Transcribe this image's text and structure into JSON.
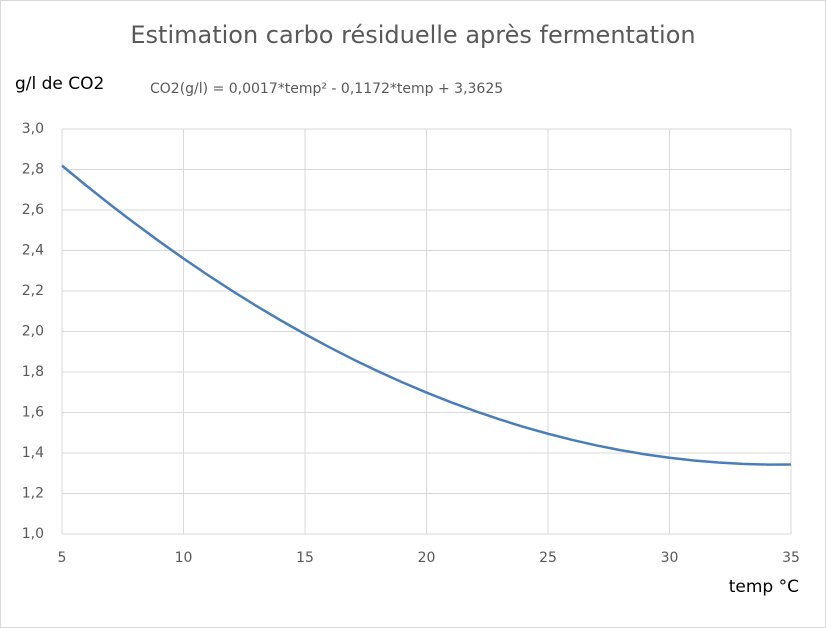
{
  "chart_data": {
    "type": "line",
    "title": "Estimation carbo résiduelle après fermentation",
    "y_label": "g/l de CO2",
    "x_label": "temp °C",
    "annotation": "CO2(g/l) = 0,0017*temp² - 0,1172*temp + 3,3625",
    "x": [
      5,
      6,
      7,
      8,
      9,
      10,
      11,
      12,
      13,
      14,
      15,
      16,
      17,
      18,
      19,
      20,
      21,
      22,
      23,
      24,
      25,
      26,
      27,
      28,
      29,
      30,
      31,
      32,
      33,
      34,
      35
    ],
    "series": [
      {
        "name": "CO2",
        "color": "#4a7ebb",
        "values": [
          2.819,
          2.7205,
          2.6254,
          2.5337,
          2.4454,
          2.3605,
          2.279,
          2.2009,
          2.1262,
          2.0549,
          1.987,
          1.9225,
          1.8614,
          1.8037,
          1.7494,
          1.6985,
          1.651,
          1.6069,
          1.5662,
          1.5289,
          1.495,
          1.4645,
          1.4374,
          1.4137,
          1.3934,
          1.3765,
          1.363,
          1.3529,
          1.3462,
          1.3429,
          1.343
        ]
      }
    ],
    "xlim": [
      5,
      35
    ],
    "xticks": [
      5,
      10,
      15,
      20,
      25,
      30,
      35
    ],
    "ylim": [
      1.0,
      3.0
    ],
    "yticks": [
      {
        "value": 1.0,
        "label": "1,0"
      },
      {
        "value": 1.2,
        "label": "1,2"
      },
      {
        "value": 1.4,
        "label": "1,4"
      },
      {
        "value": 1.6,
        "label": "1,6"
      },
      {
        "value": 1.8,
        "label": "1,8"
      },
      {
        "value": 2.0,
        "label": "2,0"
      },
      {
        "value": 2.2,
        "label": "2,2"
      },
      {
        "value": 2.4,
        "label": "2,4"
      },
      {
        "value": 2.6,
        "label": "2,6"
      },
      {
        "value": 2.8,
        "label": "2,8"
      },
      {
        "value": 3.0,
        "label": "3,0"
      }
    ],
    "grid": true
  }
}
